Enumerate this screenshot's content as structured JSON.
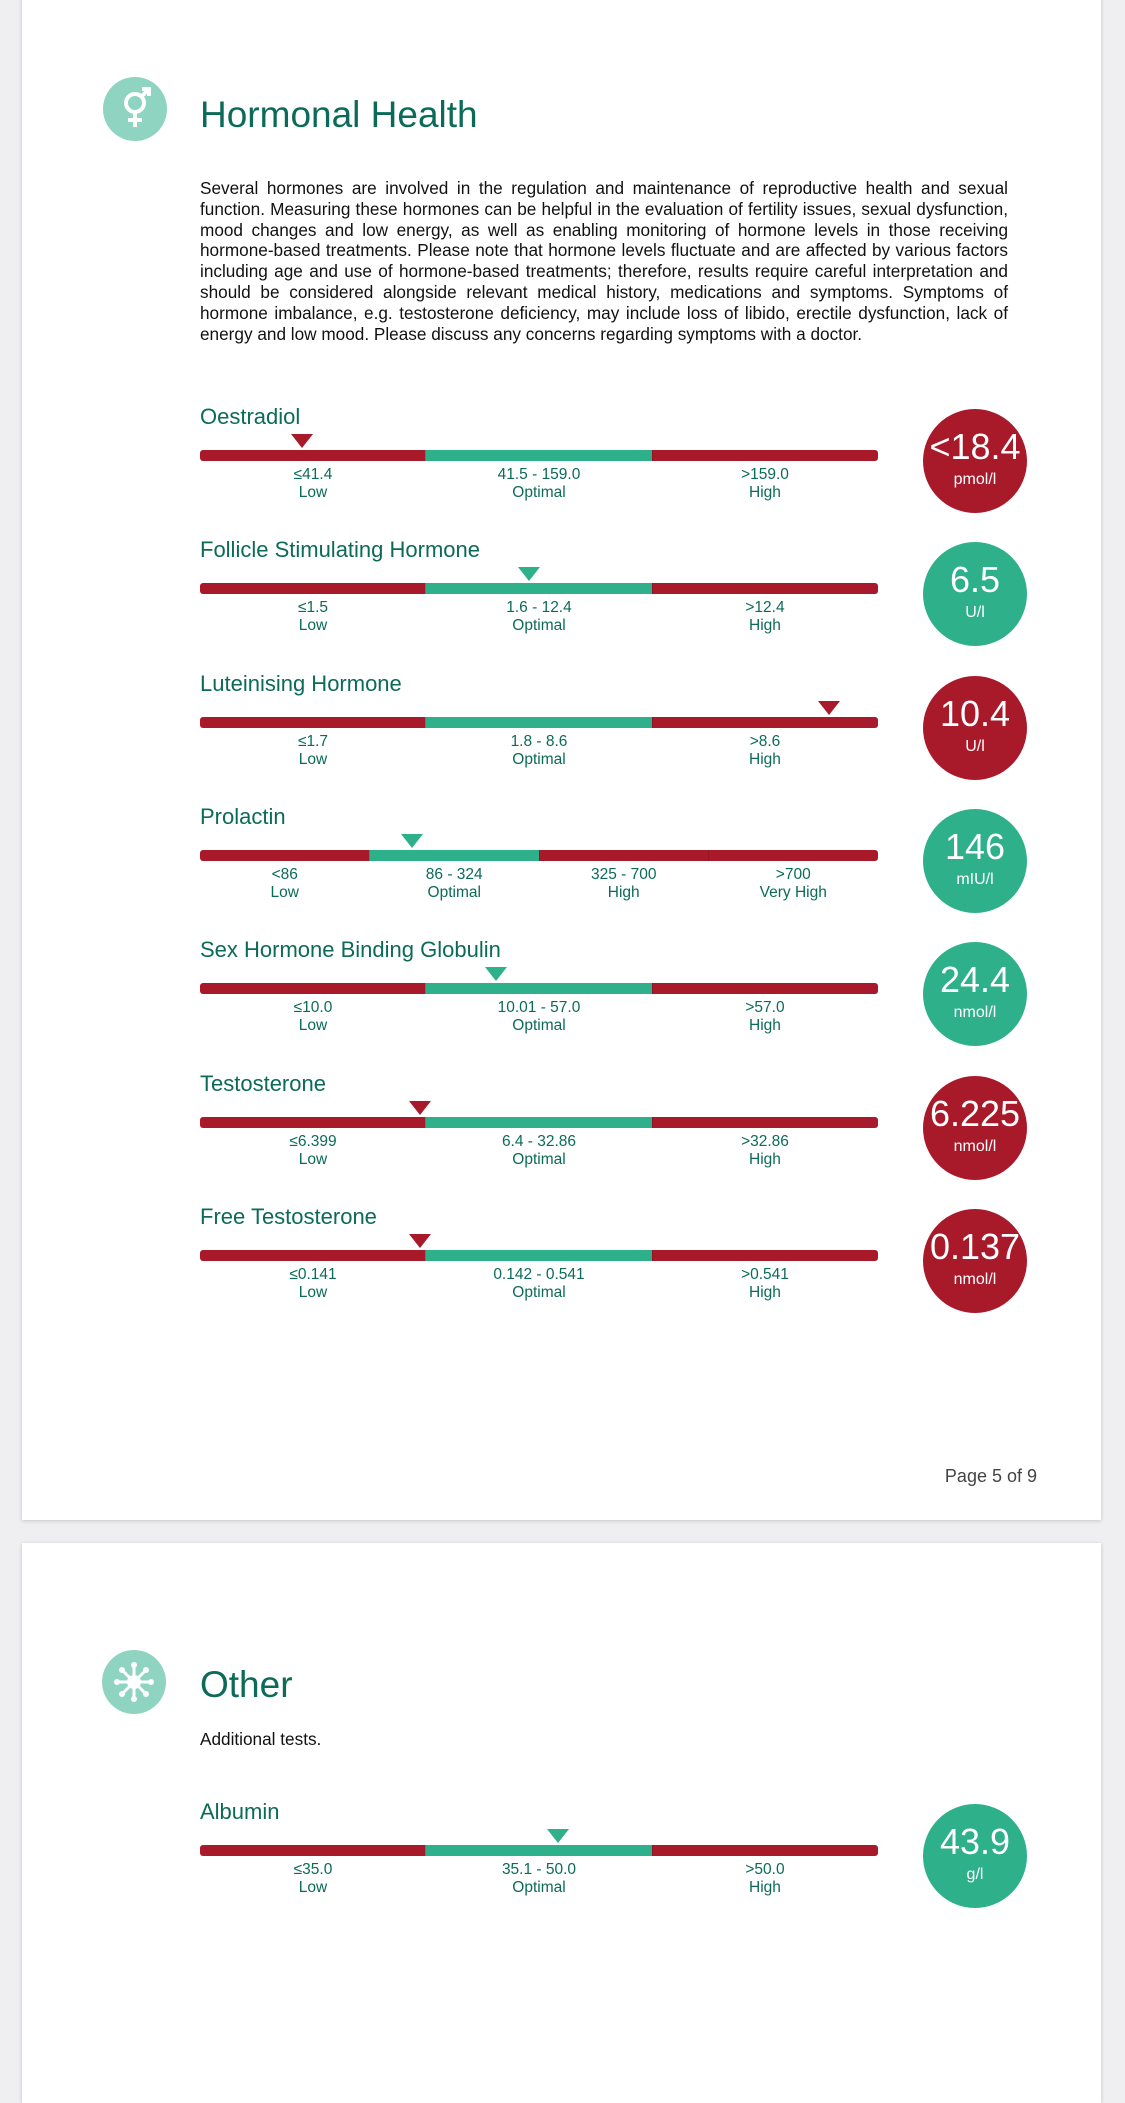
{
  "colors": {
    "red": "#a8192a",
    "green": "#2eb08a",
    "title": "#0b6b58",
    "icon_bg": "#8fd4c0"
  },
  "hormonal": {
    "icon": "gender-symbol-icon",
    "title": "Hormonal Health",
    "description": "Several hormones are involved in the regulation and maintenance of reproductive health and sexual function. Measuring these hormones can be helpful in the evaluation of fertility issues, sexual dysfunction, mood changes and low energy, as well as enabling monitoring of hormone levels in those receiving hormone-based treatments. Please note that hormone levels fluctuate and are affected by various factors including age and use of hormone-based treatments; therefore, results require careful interpretation and should be considered alongside relevant medical history, medications and symptoms. Symptoms of hormone imbalance, e.g. testosterone deficiency, may include loss of libido, erectile dysfunction, lack of energy and low mood. Please discuss any concerns regarding symptoms with a doctor.",
    "markers": [
      {
        "name": "Oestradiol",
        "value": "<18.4",
        "unit": "pmol/l",
        "status": "red",
        "pointer": 0.15,
        "ranges": [
          {
            "label": "≤41.4",
            "band": "Low",
            "color": "red"
          },
          {
            "label": "41.5 - 159.0",
            "band": "Optimal",
            "color": "green"
          },
          {
            "label": ">159.0",
            "band": "High",
            "color": "red"
          }
        ]
      },
      {
        "name": "Follicle Stimulating Hormone",
        "value": "6.5",
        "unit": "U/l",
        "status": "green",
        "pointer": 0.485,
        "ranges": [
          {
            "label": "≤1.5",
            "band": "Low",
            "color": "red"
          },
          {
            "label": "1.6 - 12.4",
            "band": "Optimal",
            "color": "green"
          },
          {
            "label": ">12.4",
            "band": "High",
            "color": "red"
          }
        ]
      },
      {
        "name": "Luteinising Hormone",
        "value": "10.4",
        "unit": "U/l",
        "status": "red",
        "pointer": 0.927,
        "ranges": [
          {
            "label": "≤1.7",
            "band": "Low",
            "color": "red"
          },
          {
            "label": "1.8 - 8.6",
            "band": "Optimal",
            "color": "green"
          },
          {
            "label": ">8.6",
            "band": "High",
            "color": "red"
          }
        ]
      },
      {
        "name": "Prolactin",
        "value": "146",
        "unit": "mIU/l",
        "status": "green",
        "pointer": 0.313,
        "ranges": [
          {
            "label": "<86",
            "band": "Low",
            "color": "red"
          },
          {
            "label": "86 - 324",
            "band": "Optimal",
            "color": "green"
          },
          {
            "label": "325 - 700",
            "band": "High",
            "color": "red"
          },
          {
            "label": ">700",
            "band": "Very High",
            "color": "red"
          }
        ]
      },
      {
        "name": "Sex Hormone Binding Globulin",
        "value": "24.4",
        "unit": "nmol/l",
        "status": "green",
        "pointer": 0.437,
        "ranges": [
          {
            "label": "≤10.0",
            "band": "Low",
            "color": "red"
          },
          {
            "label": "10.01 - 57.0",
            "band": "Optimal",
            "color": "green"
          },
          {
            "label": ">57.0",
            "band": "High",
            "color": "red"
          }
        ]
      },
      {
        "name": "Testosterone",
        "value": "6.225",
        "unit": "nmol/l",
        "status": "red",
        "pointer": 0.324,
        "ranges": [
          {
            "label": "≤6.399",
            "band": "Low",
            "color": "red"
          },
          {
            "label": "6.4 - 32.86",
            "band": "Optimal",
            "color": "green"
          },
          {
            "label": ">32.86",
            "band": "High",
            "color": "red"
          }
        ]
      },
      {
        "name": "Free Testosterone",
        "value": "0.137",
        "unit": "nmol/l",
        "status": "red",
        "pointer": 0.324,
        "ranges": [
          {
            "label": "≤0.141",
            "band": "Low",
            "color": "red"
          },
          {
            "label": "0.142 - 0.541",
            "band": "Optimal",
            "color": "green"
          },
          {
            "label": ">0.541",
            "band": "High",
            "color": "red"
          }
        ]
      }
    ]
  },
  "page_number": "Page 5 of 9",
  "other": {
    "icon": "virus-icon",
    "title": "Other",
    "description": "Additional tests.",
    "markers": [
      {
        "name": "Albumin",
        "value": "43.9",
        "unit": "g/l",
        "status": "green",
        "pointer": 0.528,
        "ranges": [
          {
            "label": "≤35.0",
            "band": "Low",
            "color": "red"
          },
          {
            "label": "35.1 - 50.0",
            "band": "Optimal",
            "color": "green"
          },
          {
            "label": ">50.0",
            "band": "High",
            "color": "red"
          }
        ]
      }
    ]
  }
}
